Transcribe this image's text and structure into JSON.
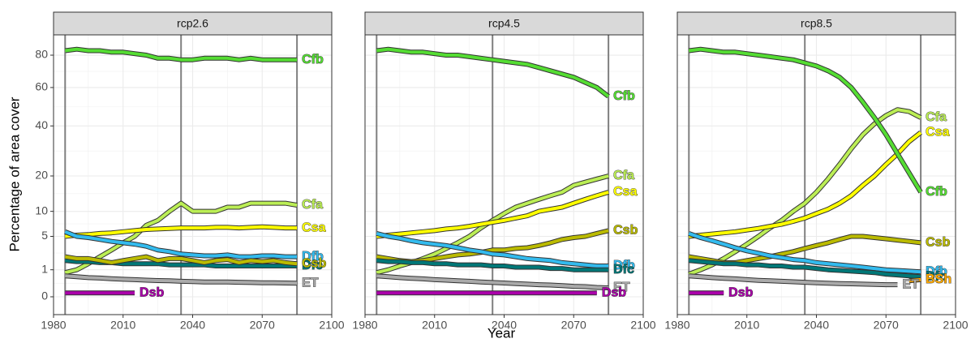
{
  "axis_labels": {
    "x": "Year",
    "y": "Percentage of area cover"
  },
  "chart_data": [
    {
      "type": "line",
      "title": "rcp2.6",
      "scale": "sqrt",
      "grid": true,
      "xlim": [
        1980,
        2100
      ],
      "xticks": [
        1980,
        2010,
        2040,
        2070,
        2100
      ],
      "ylim": [
        0,
        94
      ],
      "yticks": [
        0,
        1,
        5,
        10,
        20,
        40,
        60,
        80
      ],
      "vlines": [
        1985,
        2035,
        2085
      ],
      "x": [
        1985,
        1990,
        1995,
        2000,
        2005,
        2010,
        2015,
        2020,
        2025,
        2030,
        2035,
        2040,
        2045,
        2050,
        2055,
        2060,
        2065,
        2070,
        2075,
        2080,
        2085
      ],
      "series": [
        {
          "name": "Cfb",
          "color": "#55dd33",
          "values": [
            83,
            84,
            83,
            83,
            82,
            82,
            81,
            80,
            78,
            78,
            77,
            77,
            78,
            78,
            78,
            77,
            78,
            77,
            77,
            77,
            77
          ]
        },
        {
          "name": "Cfa",
          "color": "#bbee55",
          "values": [
            0.8,
            1.0,
            1.5,
            2.2,
            3,
            4,
            5,
            7,
            8,
            10,
            12,
            10,
            10,
            10,
            11,
            11,
            12,
            12,
            12,
            12,
            11.5
          ]
        },
        {
          "name": "Csa",
          "color": "#ffff00",
          "values": [
            5,
            5.2,
            5.3,
            5.5,
            5.6,
            5.8,
            6,
            6.2,
            6.3,
            6.4,
            6.5,
            6.5,
            6.5,
            6.6,
            6.6,
            6.5,
            6.6,
            6.7,
            6.6,
            6.5,
            6.5
          ]
        },
        {
          "name": "Dfb",
          "color": "#33bbee",
          "values": [
            5.8,
            5,
            4.8,
            4.5,
            4.2,
            4,
            3.8,
            3.5,
            3,
            2.8,
            2.5,
            2.4,
            2.3,
            2.3,
            2.4,
            2.2,
            2.2,
            2.3,
            2.3,
            2.2,
            2.2
          ]
        },
        {
          "name": "Dfc",
          "color": "#007777",
          "values": [
            1.8,
            1.7,
            1.7,
            1.6,
            1.6,
            1.5,
            1.5,
            1.5,
            1.5,
            1.4,
            1.4,
            1.4,
            1.4,
            1.3,
            1.3,
            1.3,
            1.3,
            1.3,
            1.3,
            1.3,
            1.3
          ]
        },
        {
          "name": "Csb",
          "color": "#bbbb00",
          "values": [
            2.2,
            2,
            2,
            1.8,
            1.6,
            1.8,
            2,
            2.2,
            1.8,
            2,
            2,
            1.8,
            1.6,
            1.8,
            1.9,
            1.6,
            1.8,
            1.7,
            1.8,
            1.6,
            1.5
          ]
        },
        {
          "name": "ET",
          "color": "#aaaaaa",
          "values": [
            0.6,
            0.55,
            0.5,
            0.48,
            0.45,
            0.42,
            0.4,
            0.38,
            0.36,
            0.35,
            0.33,
            0.32,
            0.3,
            0.3,
            0.3,
            0.29,
            0.28,
            0.27,
            0.27,
            0.26,
            0.25
          ]
        },
        {
          "name": "Dsb",
          "color": "#aa00aa",
          "values": [
            0.02,
            0.02,
            0.02,
            0.02,
            0.02,
            0.02,
            0.02,
            null,
            null,
            null,
            null,
            null,
            null,
            null,
            null,
            null,
            null,
            null,
            null,
            null,
            null
          ]
        }
      ]
    },
    {
      "type": "line",
      "title": "rcp4.5",
      "scale": "sqrt",
      "grid": true,
      "xlim": [
        1980,
        2100
      ],
      "xticks": [
        1980,
        2010,
        2040,
        2070,
        2100
      ],
      "ylim": [
        0,
        94
      ],
      "yticks": [
        0,
        1,
        5,
        10,
        20,
        40,
        60,
        80
      ],
      "vlines": [
        1985,
        2035,
        2085
      ],
      "x": [
        1985,
        1990,
        1995,
        2000,
        2005,
        2010,
        2015,
        2020,
        2025,
        2030,
        2035,
        2040,
        2045,
        2050,
        2055,
        2060,
        2065,
        2070,
        2075,
        2080,
        2085
      ],
      "series": [
        {
          "name": "Cfb",
          "color": "#55dd33",
          "values": [
            83,
            84,
            83,
            82,
            82,
            81,
            80,
            80,
            79,
            78,
            77,
            76,
            75,
            74,
            72,
            70,
            68,
            66,
            63,
            60,
            55
          ]
        },
        {
          "name": "Cfa",
          "color": "#bbee55",
          "values": [
            0.8,
            1,
            1.3,
            1.6,
            2,
            2.5,
            3.2,
            4,
            5,
            6.5,
            8,
            9.5,
            11,
            12,
            13,
            14,
            15,
            17,
            18,
            19,
            20
          ]
        },
        {
          "name": "Csa",
          "color": "#ffff00",
          "values": [
            5,
            5.2,
            5.4,
            5.6,
            5.8,
            6,
            6.3,
            6.5,
            6.8,
            7.2,
            7.6,
            8,
            8.5,
            9,
            10,
            10.5,
            11,
            12,
            13,
            14,
            15
          ]
        },
        {
          "name": "Csb",
          "color": "#bbbb00",
          "values": [
            2.2,
            2,
            1.8,
            1.7,
            1.8,
            2,
            2.2,
            2.4,
            2.5,
            2.7,
            3,
            3,
            3.2,
            3.3,
            3.6,
            4,
            4.5,
            4.8,
            5,
            5.5,
            6
          ]
        },
        {
          "name": "Dfb",
          "color": "#33bbee",
          "values": [
            5.5,
            5,
            4.7,
            4.3,
            4,
            3.8,
            3.6,
            3.3,
            3,
            2.8,
            2.5,
            2.4,
            2.2,
            2,
            1.9,
            1.8,
            1.6,
            1.5,
            1.4,
            1.3,
            1.3
          ]
        },
        {
          "name": "Dfc",
          "color": "#007777",
          "values": [
            1.8,
            1.7,
            1.7,
            1.6,
            1.6,
            1.5,
            1.5,
            1.4,
            1.4,
            1.4,
            1.3,
            1.3,
            1.2,
            1.2,
            1.2,
            1.1,
            1.1,
            1.0,
            1.0,
            1.0,
            1.0
          ]
        },
        {
          "name": "ET",
          "color": "#aaaaaa",
          "values": [
            0.6,
            0.55,
            0.5,
            0.47,
            0.44,
            0.4,
            0.38,
            0.35,
            0.33,
            0.3,
            0.28,
            0.26,
            0.24,
            0.22,
            0.2,
            0.19,
            0.17,
            0.15,
            0.14,
            0.12,
            0.11
          ]
        },
        {
          "name": "Dsb",
          "color": "#aa00aa",
          "values": [
            0.02,
            0.02,
            0.02,
            0.02,
            0.02,
            0.02,
            0.02,
            0.02,
            0.02,
            0.02,
            0.02,
            0.02,
            0.02,
            0.02,
            0.02,
            0.02,
            0.02,
            0.02,
            0.02,
            0.02,
            null
          ]
        }
      ]
    },
    {
      "type": "line",
      "title": "rcp8.5",
      "scale": "sqrt",
      "grid": true,
      "xlim": [
        1980,
        2100
      ],
      "xticks": [
        1980,
        2010,
        2040,
        2070,
        2100
      ],
      "ylim": [
        0,
        94
      ],
      "yticks": [
        0,
        1,
        5,
        10,
        20,
        40,
        60,
        80
      ],
      "vlines": [
        1985,
        2035,
        2085
      ],
      "x": [
        1985,
        1990,
        1995,
        2000,
        2005,
        2010,
        2015,
        2020,
        2025,
        2030,
        2035,
        2040,
        2045,
        2050,
        2055,
        2060,
        2065,
        2070,
        2075,
        2080,
        2085
      ],
      "series": [
        {
          "name": "Cfa",
          "color": "#bbee55",
          "values": [
            0.7,
            1,
            1.4,
            2,
            2.8,
            3.8,
            5,
            6.5,
            8,
            10,
            12,
            15,
            19,
            24,
            30,
            36,
            41,
            45,
            48,
            47,
            44
          ]
        },
        {
          "name": "Csa",
          "color": "#ffff00",
          "values": [
            5,
            5.2,
            5.4,
            5.6,
            5.8,
            6.1,
            6.4,
            6.8,
            7.2,
            7.8,
            8.5,
            9.5,
            10.5,
            12,
            14,
            17,
            20,
            24,
            28,
            33,
            37
          ]
        },
        {
          "name": "Cfb",
          "color": "#55dd33",
          "values": [
            83,
            84,
            83,
            82,
            82,
            81,
            80,
            79,
            78,
            77,
            75,
            73,
            70,
            66,
            60,
            52,
            44,
            36,
            28,
            21,
            15
          ]
        },
        {
          "name": "Csb",
          "color": "#bbbb00",
          "values": [
            2.2,
            2,
            1.8,
            1.6,
            1.6,
            1.8,
            2,
            2.2,
            2.5,
            2.8,
            3.2,
            3.6,
            4,
            4.5,
            5,
            5,
            4.8,
            4.6,
            4.4,
            4.2,
            4
          ]
        },
        {
          "name": "Dfb",
          "color": "#33bbee",
          "values": [
            5.5,
            4.8,
            4.3,
            3.8,
            3.3,
            2.9,
            2.6,
            2.3,
            2.1,
            1.9,
            1.8,
            1.6,
            1.5,
            1.4,
            1.3,
            1.2,
            1.1,
            1.0,
            0.95,
            0.9,
            0.85
          ]
        },
        {
          "name": "Dfc",
          "color": "#007777",
          "values": [
            1.8,
            1.7,
            1.6,
            1.5,
            1.5,
            1.4,
            1.4,
            1.3,
            1.3,
            1.2,
            1.2,
            1.1,
            1.0,
            0.95,
            0.9,
            0.85,
            0.8,
            0.7,
            0.65,
            0.6,
            0.55
          ]
        },
        {
          "name": "BSh",
          "color": "#ffaa00",
          "values": [
            null,
            null,
            null,
            null,
            null,
            null,
            null,
            null,
            null,
            null,
            null,
            null,
            null,
            null,
            null,
            null,
            null,
            null,
            null,
            0.35,
            0.4
          ]
        },
        {
          "name": "ET",
          "color": "#aaaaaa",
          "values": [
            0.6,
            0.55,
            0.5,
            0.47,
            0.44,
            0.4,
            0.37,
            0.35,
            0.33,
            0.31,
            0.29,
            0.27,
            0.25,
            0.24,
            0.23,
            0.22,
            0.21,
            0.2,
            0.2,
            null,
            null
          ]
        },
        {
          "name": "Dsb",
          "color": "#aa00aa",
          "values": [
            0.02,
            0.02,
            0.02,
            0.02,
            null,
            null,
            null,
            null,
            null,
            null,
            null,
            null,
            null,
            null,
            null,
            null,
            null,
            null,
            null,
            null,
            null
          ]
        }
      ]
    }
  ]
}
